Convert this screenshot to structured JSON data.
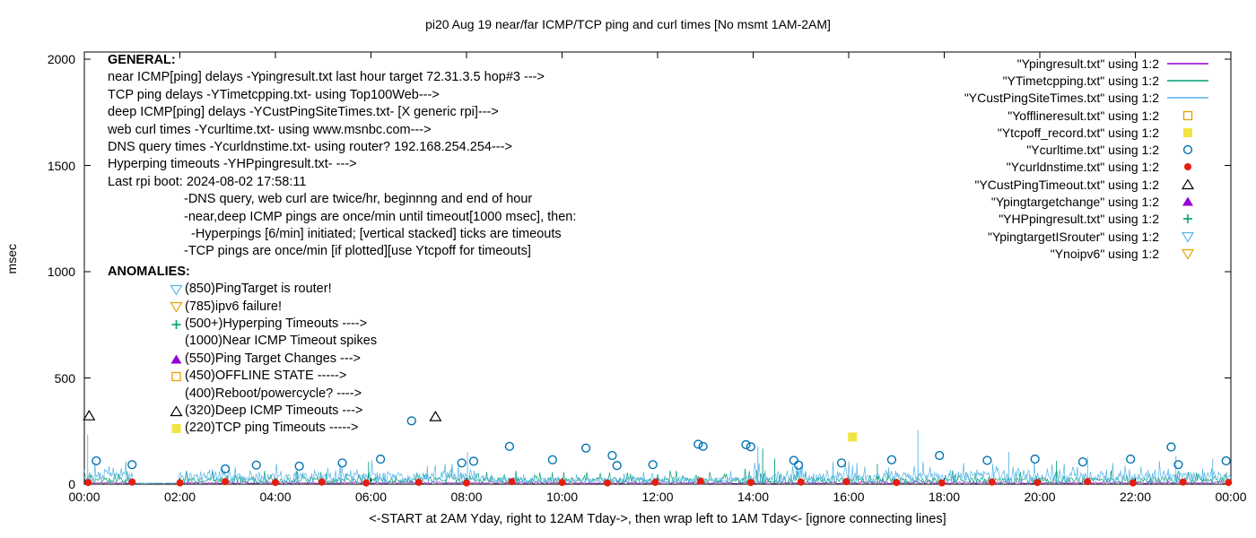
{
  "title": "pi20 Aug 19  near/far ICMP/TCP ping and curl times [No msmt 1AM-2AM]",
  "y_axis": {
    "label": "msec",
    "ticks": [
      "0",
      "500",
      "1000",
      "1500",
      "2000"
    ]
  },
  "x_axis": {
    "label": "<-START at 2AM Yday, right to 12AM Tday->, then wrap left to 1AM Tday<- [ignore connecting lines]",
    "ticks": [
      "00:00",
      "02:00",
      "04:00",
      "06:00",
      "08:00",
      "10:00",
      "12:00",
      "14:00",
      "16:00",
      "18:00",
      "20:00",
      "22:00",
      "00:00"
    ]
  },
  "legend": [
    {
      "label": "\"Ypingresult.txt\" using 1:2",
      "type": "line",
      "color": "#9400d3"
    },
    {
      "label": "\"YTimetcpping.txt\" using 1:2",
      "type": "line",
      "color": "#009e73"
    },
    {
      "label": "\"YCustPingSiteTimes.txt\" using 1:2",
      "type": "line",
      "color": "#56b4e9"
    },
    {
      "label": "\"Yofflineresult.txt\" using 1:2",
      "type": "square-open",
      "color": "#e69f00"
    },
    {
      "label": "\"Ytcpoff_record.txt\" using 1:2",
      "type": "square-filled",
      "color": "#f0e442"
    },
    {
      "label": "\"Ycurltime.txt\" using 1:2",
      "type": "circle-open",
      "color": "#0072b2"
    },
    {
      "label": "\"Ycurldnstime.txt\" using 1:2",
      "type": "circle-filled",
      "color": "#e51e10"
    },
    {
      "label": "\"YCustPingTimeout.txt\" using 1:2",
      "type": "triangle-open",
      "color": "#000000"
    },
    {
      "label": "\"Ypingtargetchange\" using 1:2",
      "type": "triangle-filled",
      "color": "#9400d3"
    },
    {
      "label": "\"YHPpingresult.txt\" using 1:2",
      "type": "plus",
      "color": "#009e73"
    },
    {
      "label": "\"YpingtargetISrouter\" using 1:2",
      "type": "triangle-down-open",
      "color": "#56b4e9"
    },
    {
      "label": "\"Ynoipv6\" using 1:2",
      "type": "triangle-down-open",
      "color": "#e69f00"
    }
  ],
  "general": {
    "heading": "GENERAL:",
    "lines": [
      {
        "text": "near ICMP[ping] delays -Ypingresult.txt last hour target 72.31.3.5 hop#3 --->",
        "indent": 0
      },
      {
        "text": "TCP ping delays -YTimetcpping.txt- using Top100Web--->",
        "indent": 0
      },
      {
        "text": "deep ICMP[ping] delays -YCustPingSiteTimes.txt- [X generic rpi]--->",
        "indent": 0
      },
      {
        "text": "web curl times -Ycurltime.txt- using www.msnbc.com--->",
        "indent": 0
      },
      {
        "text": "DNS query times -Ycurldnstime.txt- using router? 192.168.254.254--->",
        "indent": 0
      },
      {
        "text": "Hyperping timeouts -YHPpingresult.txt- --->",
        "indent": 0
      },
      {
        "text": "Last rpi boot: 2024-08-02 17:58:11",
        "indent": 0
      },
      {
        "text": "-DNS query, web curl are twice/hr, beginnng and end of hour",
        "indent": 1
      },
      {
        "text": "-near,deep ICMP pings are once/min until timeout[1000 msec], then:",
        "indent": 1
      },
      {
        "text": "-Hyperpings [6/min] initiated; [vertical stacked] ticks are timeouts",
        "indent": 2
      },
      {
        "text": "-TCP pings are once/min [if plotted][use Ytcpoff for timeouts]",
        "indent": 1
      }
    ]
  },
  "anomalies": {
    "heading": "ANOMALIES:",
    "rows": [
      {
        "marker": "triangle-down-open",
        "color": "#56b4e9",
        "text": "(850)PingTarget is router!"
      },
      {
        "marker": "triangle-down-open",
        "color": "#e69f00",
        "text": "(785)ipv6 failure!"
      },
      {
        "marker": "plus",
        "color": "#009e73",
        "text": "(500+)Hyperping Timeouts ---->"
      },
      {
        "marker": "none",
        "color": "#000000",
        "text": "(1000)Near ICMP Timeout spikes"
      },
      {
        "marker": "triangle-filled",
        "color": "#9400d3",
        "text": "(550)Ping Target Changes --->"
      },
      {
        "marker": "square-open",
        "color": "#e69f00",
        "text": "(450)OFFLINE STATE ----->"
      },
      {
        "marker": "none",
        "color": "#000000",
        "text": "(400)Reboot/powercycle? ---->"
      },
      {
        "marker": "triangle-open",
        "color": "#000000",
        "text": "(320)Deep ICMP Timeouts --->"
      },
      {
        "marker": "square-filled",
        "color": "#f0e442",
        "text": "(220)TCP ping Timeouts ----->"
      }
    ]
  },
  "chart_data": {
    "type": "line",
    "title": "pi20 Aug 19  near/far ICMP/TCP ping and curl times [No msmt 1AM-2AM]",
    "xlabel": "<-START at 2AM Yday, right to 12AM Tday->, then wrap left to 1AM Tday<- [ignore connecting lines]",
    "ylabel": "msec",
    "ylim": [
      0,
      2000
    ],
    "xlim_hours": [
      0,
      24
    ],
    "y_ticks": [
      0,
      500,
      1000,
      1500,
      2000
    ],
    "no_measurement_gap_hours": [
      1.03,
      1.97
    ],
    "series": [
      {
        "name": "Ypingresult.txt",
        "kind": "noise-line",
        "color": "#9400d3",
        "gen": {
          "seed": 11,
          "base": 2,
          "amp": 9,
          "spike_prob": 0.05,
          "spike_amp": 10,
          "points": 900
        },
        "gap": [
          1.03,
          1.97
        ],
        "spikes": []
      },
      {
        "name": "YTimetcpping.txt",
        "kind": "noise-line",
        "color": "#009e73",
        "gen": {
          "seed": 23,
          "base": 4,
          "amp": 28,
          "spike_prob": 0.12,
          "spike_amp": 45,
          "points": 1100
        },
        "gap": [
          1.03,
          1.97
        ],
        "spikes": [
          [
            5.95,
            105
          ],
          [
            14.2,
            168
          ],
          [
            14.45,
            120
          ],
          [
            16.6,
            95
          ],
          [
            20.35,
            110
          ]
        ]
      },
      {
        "name": "YCustPingSiteTimes.txt",
        "kind": "noise-line",
        "color": "#56b4e9",
        "gen": {
          "seed": 7,
          "base": 6,
          "amp": 50,
          "spike_prob": 0.2,
          "spike_amp": 62,
          "points": 1300
        },
        "amp_profile": [
          [
            0,
            1.0
          ],
          [
            8.2,
            0.55
          ],
          [
            13.9,
            1.0
          ]
        ],
        "gap": [
          1.03,
          1.97
        ],
        "spikes": [
          [
            0.07,
            232
          ],
          [
            8.02,
            150
          ],
          [
            14.1,
            178
          ],
          [
            17.45,
            255
          ],
          [
            19.35,
            152
          ],
          [
            21.0,
            128
          ],
          [
            22.85,
            132
          ],
          [
            23.62,
            120
          ]
        ]
      },
      {
        "name": "Ycurltime.txt",
        "kind": "points",
        "marker": "circle-open",
        "color": "#0072b2",
        "points": [
          [
            0.25,
            110
          ],
          [
            1.0,
            92
          ],
          [
            2.95,
            72
          ],
          [
            3.6,
            90
          ],
          [
            4.5,
            85
          ],
          [
            5.4,
            100
          ],
          [
            6.2,
            118
          ],
          [
            6.85,
            298
          ],
          [
            7.9,
            100
          ],
          [
            8.15,
            108
          ],
          [
            8.9,
            178
          ],
          [
            9.8,
            115
          ],
          [
            10.5,
            170
          ],
          [
            11.05,
            135
          ],
          [
            11.15,
            88
          ],
          [
            11.9,
            92
          ],
          [
            12.85,
            188
          ],
          [
            12.95,
            178
          ],
          [
            13.85,
            186
          ],
          [
            13.95,
            176
          ],
          [
            14.85,
            112
          ],
          [
            14.95,
            90
          ],
          [
            15.85,
            100
          ],
          [
            16.9,
            115
          ],
          [
            17.9,
            135
          ],
          [
            18.9,
            112
          ],
          [
            19.9,
            118
          ],
          [
            20.9,
            105
          ],
          [
            21.9,
            118
          ],
          [
            22.75,
            175
          ],
          [
            22.9,
            92
          ],
          [
            23.9,
            110
          ]
        ]
      },
      {
        "name": "Ycurldnstime.txt",
        "kind": "points",
        "marker": "circle-filled",
        "color": "#e51e10",
        "points": [
          [
            0.08,
            8
          ],
          [
            1.0,
            10
          ],
          [
            2.0,
            6
          ],
          [
            2.95,
            12
          ],
          [
            4.0,
            8
          ],
          [
            4.97,
            10
          ],
          [
            5.9,
            6
          ],
          [
            7.0,
            9
          ],
          [
            8.0,
            6
          ],
          [
            8.95,
            12
          ],
          [
            10.0,
            8
          ],
          [
            10.95,
            6
          ],
          [
            11.95,
            9
          ],
          [
            12.9,
            14
          ],
          [
            13.95,
            8
          ],
          [
            15.0,
            10
          ],
          [
            15.95,
            12
          ],
          [
            17.0,
            8
          ],
          [
            17.95,
            6
          ],
          [
            19.0,
            10
          ],
          [
            19.95,
            8
          ],
          [
            21.0,
            12
          ],
          [
            21.95,
            6
          ],
          [
            23.0,
            10
          ],
          [
            23.95,
            8
          ]
        ]
      },
      {
        "name": "YCustPingTimeout.txt",
        "kind": "points",
        "marker": "triangle-open",
        "color": "#000000",
        "points": [
          [
            0.1,
            322
          ],
          [
            7.35,
            318
          ]
        ]
      },
      {
        "name": "Ytcpoff_record.txt",
        "kind": "points",
        "marker": "square-filled",
        "color": "#f0e442",
        "points": [
          [
            16.08,
            222
          ]
        ]
      }
    ]
  }
}
